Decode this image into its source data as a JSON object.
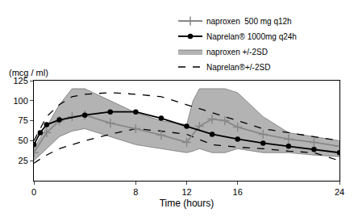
{
  "chart_data": {
    "type": "line",
    "x_label": "Time (hours)",
    "y_label": "(mcg / ml)",
    "xlim": [
      0,
      24
    ],
    "xticks": [
      0,
      8,
      12,
      16,
      24
    ],
    "ylim": [
      0,
      125
    ],
    "yticks": [
      25,
      50,
      75,
      100,
      125
    ],
    "grid": false,
    "legend": "top right",
    "series": [
      {
        "name": "naproxen  500 mg q12h",
        "type": "line",
        "color": "#888888",
        "marker": "cross",
        "line_style": "solid",
        "x": [
          0,
          1,
          2,
          3,
          4,
          6,
          8,
          10,
          12,
          13,
          14,
          15,
          16,
          18,
          20,
          22,
          24
        ],
        "values": [
          35,
          60,
          75,
          80,
          82,
          72,
          65,
          57,
          48,
          68,
          77,
          75,
          67,
          58,
          52,
          48,
          43
        ]
      },
      {
        "name": "Naprelan® 1000mg q24h",
        "type": "line",
        "color": "#000000",
        "marker": "circle",
        "line_style": "solid",
        "x": [
          0,
          0.5,
          1,
          2,
          4,
          6,
          8,
          10,
          12,
          14,
          16,
          18,
          20,
          22,
          24
        ],
        "values": [
          45,
          60,
          70,
          76,
          82,
          86,
          86,
          78,
          68,
          58,
          52,
          47,
          43,
          39,
          35
        ]
      },
      {
        "name": "naproxen +/-2SD",
        "type": "band",
        "color": "#a6a6a6",
        "line_style": "solid",
        "x": [
          0,
          2,
          3,
          4,
          6,
          8,
          10,
          12,
          12.5,
          13,
          14,
          15,
          16,
          18,
          20,
          22,
          24
        ],
        "upper": [
          40,
          95,
          115,
          115,
          100,
          85,
          75,
          70,
          100,
          115,
          115,
          115,
          110,
          80,
          60,
          55,
          50
        ],
        "lower": [
          25,
          55,
          62,
          65,
          55,
          45,
          40,
          35,
          37,
          40,
          35,
          35,
          40,
          35,
          35,
          32,
          30
        ]
      },
      {
        "name": "Naprelan®+/-2SD",
        "type": "band",
        "color": "#000000",
        "line_style": "dashed",
        "x": [
          0,
          1,
          2,
          3,
          4,
          6,
          8,
          10,
          12,
          14,
          16,
          18,
          20,
          22,
          24
        ],
        "upper": [
          50,
          80,
          95,
          105,
          108,
          110,
          108,
          105,
          95,
          85,
          75,
          65,
          60,
          55,
          50
        ],
        "lower": [
          22,
          32,
          40,
          45,
          50,
          58,
          65,
          62,
          58,
          45,
          42,
          40,
          37,
          35,
          25
        ]
      }
    ]
  }
}
